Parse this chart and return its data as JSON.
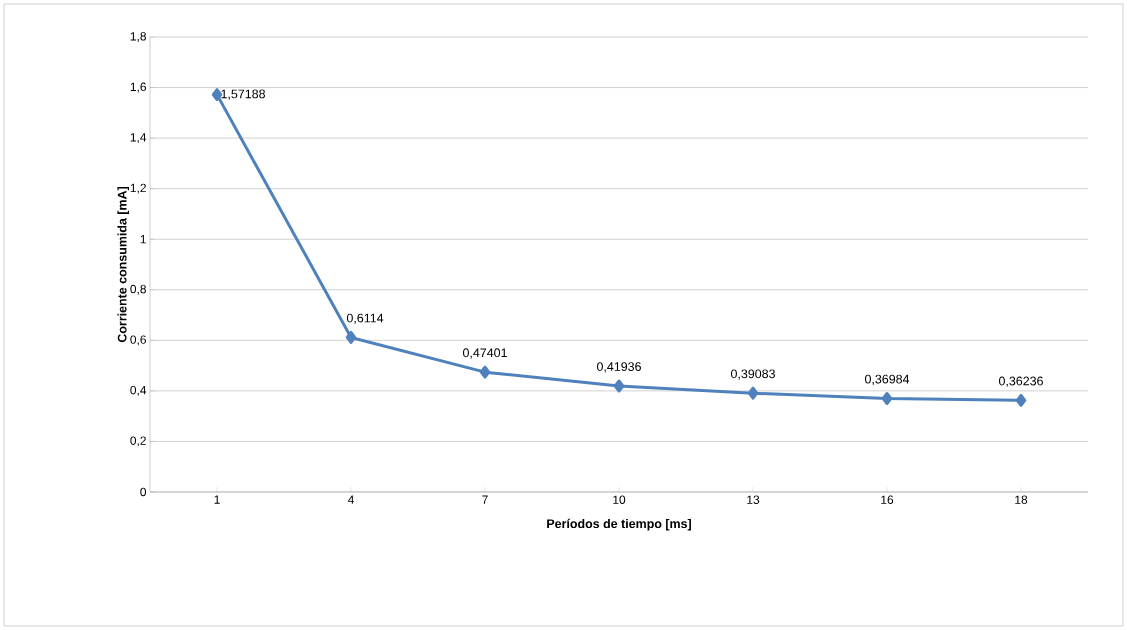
{
  "chart_data": {
    "type": "line",
    "xlabel": "Períodos de tiempo [ms]",
    "ylabel": "Corriente consumida [mA]",
    "categories": [
      "1",
      "4",
      "7",
      "10",
      "13",
      "16",
      "18"
    ],
    "series": [
      {
        "color": "#4f81bd",
        "values": [
          1.57188,
          0.6114,
          0.47401,
          0.41936,
          0.39083,
          0.36984,
          0.36236
        ],
        "value_labels": [
          "1,57188",
          "0,6114",
          "0,47401",
          "0,41936",
          "0,39083",
          "0,36984",
          "0,36236"
        ]
      }
    ],
    "ylim": [
      0,
      1.8
    ],
    "yticks": [
      {
        "value": 0,
        "label": "0"
      },
      {
        "value": 0.2,
        "label": "0,2"
      },
      {
        "value": 0.4,
        "label": "0,4"
      },
      {
        "value": 0.6,
        "label": "0,6"
      },
      {
        "value": 0.8,
        "label": "0,8"
      },
      {
        "value": 1,
        "label": "1"
      },
      {
        "value": 1.2,
        "label": "1,2"
      },
      {
        "value": 1.4,
        "label": "1,4"
      },
      {
        "value": 1.6,
        "label": "1,6"
      },
      {
        "value": 1.8,
        "label": "1,8"
      }
    ],
    "grid": "y",
    "marker": "diamond",
    "line_style": "solid"
  }
}
